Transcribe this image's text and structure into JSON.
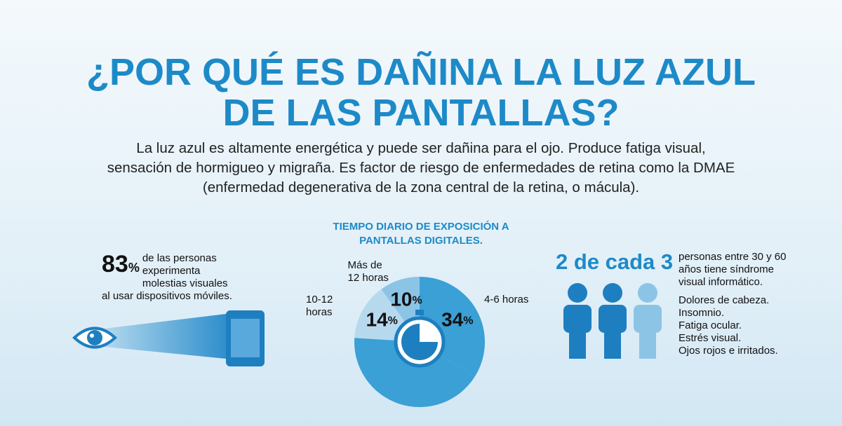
{
  "header": {
    "title": [
      "¿POR QUÉ ES DAÑINA LA LUZ AZUL",
      "DE LAS PANTALLAS?"
    ],
    "intro": "La luz azul es altamente energética y puede ser dañina para el ojo. Produce fatiga visual, sensación de hormigueo y migraña. Es factor de riesgo de enfermedades de retina como la DMAE (enfermedad degenerativa de la zona central de la retina, o mácula)."
  },
  "stat_left": {
    "value": "83",
    "unit": "%",
    "text": "de las personas experimenta molestias visuales al usar dispositivos móviles."
  },
  "chart_data": {
    "type": "pie",
    "title": "TIEMPO DIARIO DE EXPOSICIÓN A PANTALLAS DIGITALES.",
    "categories": [
      "4-6 horas",
      null,
      "10-12 horas",
      "Más de 12 horas"
    ],
    "values": [
      34,
      42,
      14,
      10
    ],
    "unit": "%",
    "colors": [
      "#3aa0d5",
      "#3aa0d5",
      "#b7d9ee",
      "#8cc4e6"
    ]
  },
  "stat_right": {
    "value": "2 de cada 3",
    "text": "personas entre 30 y 60 años tiene síndrome visual informático.",
    "list": [
      "Dolores de cabeza.",
      "Insomnio.",
      "Fatiga ocular.",
      "Estrés visual.",
      "Ojos rojos e irritados."
    ]
  }
}
